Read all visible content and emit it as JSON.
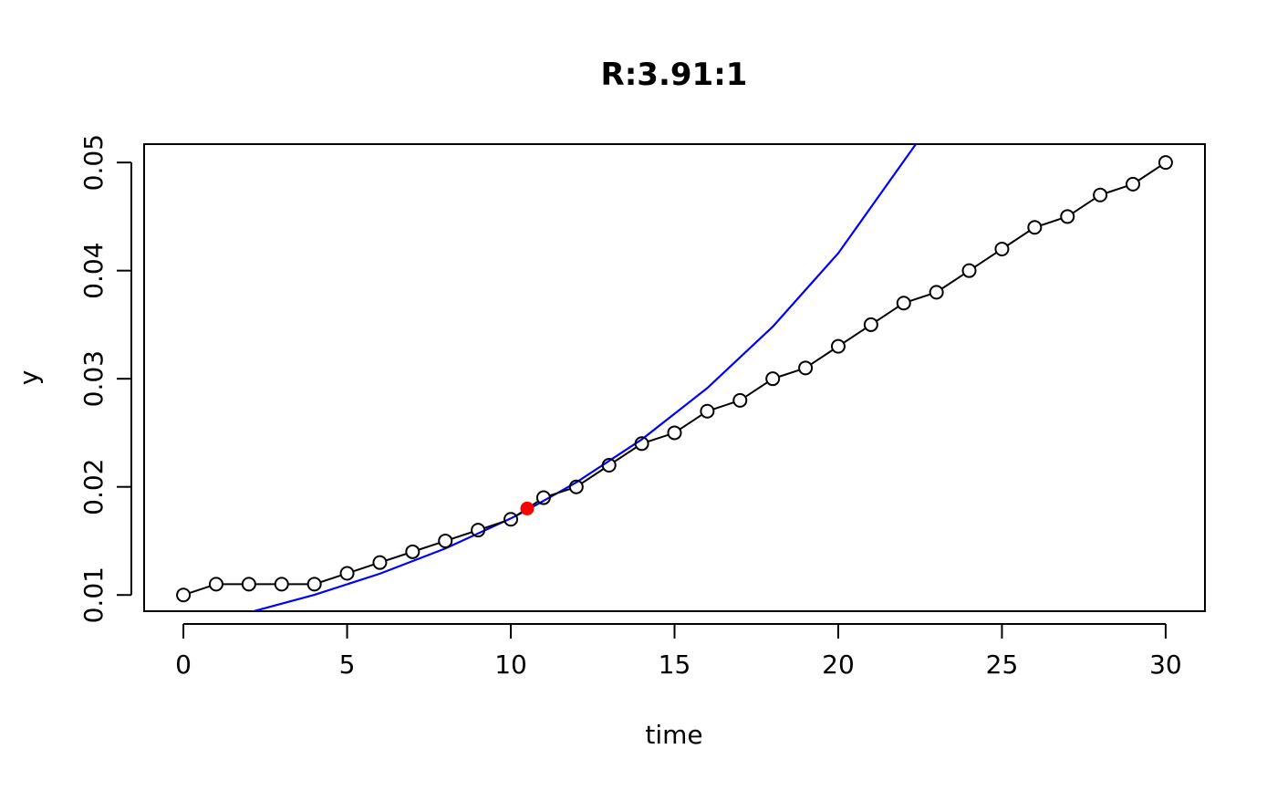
{
  "chart_data": {
    "type": "line",
    "title": "R:3.91:1",
    "xlabel": "time",
    "ylabel": "y",
    "xlim": [
      -1.2,
      31.2
    ],
    "ylim": [
      0.0085,
      0.0517
    ],
    "xticks": [
      0,
      5,
      10,
      15,
      20,
      25,
      30
    ],
    "xtick_labels": [
      "0",
      "5",
      "10",
      "15",
      "20",
      "25",
      "30"
    ],
    "yticks": [
      0.01,
      0.02,
      0.03,
      0.04,
      0.05
    ],
    "ytick_labels": [
      "0.01",
      "0.02",
      "0.03",
      "0.04",
      "0.05"
    ],
    "grid": false,
    "series": [
      {
        "style": "line-with-open-circles",
        "color": "#000000",
        "x": [
          0,
          1,
          2,
          3,
          4,
          5,
          6,
          7,
          8,
          9,
          10,
          11,
          12,
          13,
          14,
          15,
          16,
          17,
          18,
          19,
          20,
          21,
          22,
          23,
          24,
          25,
          26,
          27,
          28,
          29,
          30
        ],
        "y": [
          0.01,
          0.011,
          0.011,
          0.011,
          0.011,
          0.012,
          0.013,
          0.014,
          0.015,
          0.016,
          0.017,
          0.019,
          0.02,
          0.022,
          0.024,
          0.025,
          0.027,
          0.028,
          0.03,
          0.031,
          0.033,
          0.035,
          0.037,
          0.038,
          0.04,
          0.042,
          0.044,
          0.045,
          0.047,
          0.048,
          0.05
        ]
      },
      {
        "style": "exponential-fit-curve",
        "color": "#0000ff",
        "x": [
          2.0,
          4.0,
          6.0,
          8.0,
          10.0,
          10.5,
          12.0,
          14.0,
          16.0,
          18.0,
          20.0,
          22.37
        ],
        "y": [
          0.00838,
          0.01001,
          0.01197,
          0.0143,
          0.01708,
          0.01786,
          0.02041,
          0.02439,
          0.02914,
          0.03482,
          0.04161,
          0.0517
        ]
      },
      {
        "style": "highlight-point",
        "color": "#ff0000",
        "x": [
          10.5
        ],
        "y": [
          0.018
        ]
      }
    ]
  }
}
